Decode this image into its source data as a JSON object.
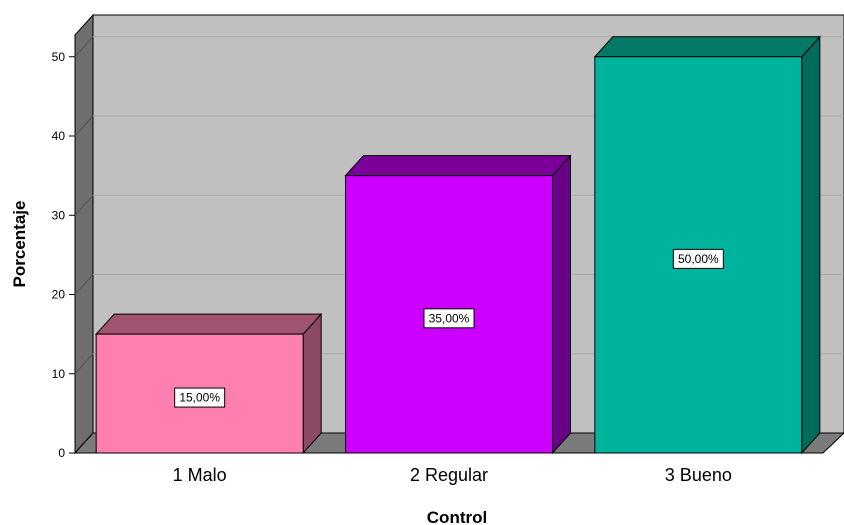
{
  "chart_data": {
    "type": "bar",
    "categories": [
      "1 Malo",
      "2 Regular",
      "3 Bueno"
    ],
    "values": [
      15,
      35,
      50
    ],
    "data_labels": [
      "15,00%",
      "35,00%",
      "50,00%"
    ],
    "xlabel": "Control",
    "ylabel": "Porcentaje",
    "ylim": [
      0,
      55
    ],
    "yticks": [
      0,
      10,
      20,
      30,
      40,
      50
    ],
    "grid": true,
    "legend": "none",
    "three_d": true
  },
  "colors": {
    "bars": [
      "#ff7fb1",
      "#cc00ff",
      "#00b39d"
    ],
    "bar_tops": [
      "#a15472",
      "#7a0099",
      "#007a66"
    ],
    "bar_sides": [
      "#8c4a64",
      "#6a0088",
      "#006b5a"
    ],
    "wall": "#c0c0c0",
    "side_wall": "#6e6e6e",
    "floor": "#7b7b7b",
    "gridline": "#a8a8a8"
  }
}
